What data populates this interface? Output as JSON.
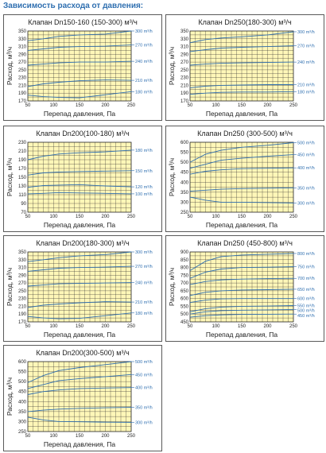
{
  "page": {
    "title": "Зависимость расхода от давления:"
  },
  "chart_data": [
    {
      "type": "line",
      "title": "Клапан Dn150-160 (150-300) м³/ч",
      "xlabel": "Перепад давления, Па",
      "ylabel": "Расход, м³/ч",
      "xlim": [
        50,
        250
      ],
      "ylim": [
        170,
        350
      ],
      "xticks": [
        50,
        100,
        150,
        200,
        250
      ],
      "yticks": [
        170,
        190,
        210,
        230,
        250,
        270,
        290,
        310,
        330,
        350
      ],
      "grid": true,
      "series": [
        {
          "name": "300 m³/h",
          "x": [
            50,
            80,
            110,
            150,
            200,
            250
          ],
          "y": [
            325,
            330,
            336,
            340,
            342,
            350
          ]
        },
        {
          "name": "270 m³/h",
          "x": [
            50,
            80,
            110,
            150,
            200,
            250
          ],
          "y": [
            300,
            304,
            308,
            310,
            311,
            314
          ]
        },
        {
          "name": "240 m³/h",
          "x": [
            50,
            80,
            110,
            150,
            200,
            250
          ],
          "y": [
            262,
            265,
            268,
            270,
            270,
            272
          ]
        },
        {
          "name": "210 m³/h",
          "x": [
            50,
            80,
            110,
            150,
            200,
            250
          ],
          "y": [
            207,
            214,
            218,
            222,
            224,
            223
          ]
        },
        {
          "name": "180 m³/h",
          "x": [
            50,
            80,
            110,
            150,
            200,
            250
          ],
          "y": [
            185,
            181,
            179,
            178,
            186,
            194
          ]
        }
      ]
    },
    {
      "type": "line",
      "title": "Клапан Dn250(180-300) м³/ч",
      "xlabel": "Перепад давления, Па",
      "ylabel": "Расход, м³/ч",
      "xlim": [
        50,
        250
      ],
      "ylim": [
        170,
        350
      ],
      "xticks": [
        50,
        100,
        150,
        200,
        250
      ],
      "yticks": [
        170,
        190,
        210,
        230,
        250,
        270,
        290,
        310,
        330,
        350
      ],
      "grid": true,
      "series": [
        {
          "name": "300 m³/h",
          "x": [
            50,
            80,
            110,
            150,
            200,
            250
          ],
          "y": [
            320,
            328,
            332,
            335,
            340,
            348
          ]
        },
        {
          "name": "270 m³/h",
          "x": [
            50,
            80,
            110,
            150,
            200,
            250
          ],
          "y": [
            297,
            302,
            306,
            308,
            310,
            312
          ]
        },
        {
          "name": "240 m³/h",
          "x": [
            50,
            80,
            110,
            150,
            200,
            250
          ],
          "y": [
            262,
            265,
            267,
            268,
            269,
            270
          ]
        },
        {
          "name": "210 m³/h",
          "x": [
            50,
            80,
            110,
            150,
            200,
            250
          ],
          "y": [
            204,
            208,
            210,
            211,
            212,
            212
          ]
        },
        {
          "name": "180 m³/h",
          "x": [
            50,
            80,
            110,
            150,
            200,
            250
          ],
          "y": [
            187,
            190,
            192,
            193,
            193,
            194
          ]
        }
      ]
    },
    {
      "type": "line",
      "title": "Клапан Dn200(100-180) м³/ч",
      "xlabel": "Перепад давления, Па",
      "ylabel": "Расход, м³/ч",
      "xlim": [
        50,
        250
      ],
      "ylim": [
        70,
        230
      ],
      "xticks": [
        50,
        100,
        150,
        200,
        250
      ],
      "yticks": [
        70,
        90,
        110,
        130,
        150,
        170,
        190,
        210,
        230
      ],
      "grid": true,
      "series": [
        {
          "name": "180 m³/h",
          "x": [
            50,
            80,
            110,
            150,
            200,
            250
          ],
          "y": [
            190,
            198,
            203,
            206,
            208,
            212
          ]
        },
        {
          "name": "150 m³/h",
          "x": [
            50,
            80,
            110,
            150,
            200,
            250
          ],
          "y": [
            155,
            160,
            162,
            163,
            164,
            165
          ]
        },
        {
          "name": "120 m³/h",
          "x": [
            50,
            80,
            110,
            150,
            200,
            250
          ],
          "y": [
            127,
            131,
            132,
            133,
            130,
            128
          ]
        },
        {
          "name": "100 m³/h",
          "x": [
            50,
            80,
            110,
            150,
            200,
            250
          ],
          "y": [
            112,
            113,
            115,
            114,
            113,
            112
          ]
        }
      ]
    },
    {
      "type": "line",
      "title": "Клапан Dn250 (300-500) м³/ч",
      "xlabel": "Перепад давления, Па",
      "ylabel": "Расход, м³/ч",
      "xlim": [
        50,
        250
      ],
      "ylim": [
        250,
        600
      ],
      "xticks": [
        50,
        100,
        150,
        200,
        250
      ],
      "yticks": [
        250,
        300,
        350,
        400,
        450,
        500,
        550,
        600
      ],
      "grid": true,
      "series": [
        {
          "name": "500 m³/h",
          "x": [
            50,
            80,
            110,
            150,
            200,
            250
          ],
          "y": [
            500,
            540,
            560,
            575,
            585,
            598
          ]
        },
        {
          "name": "450 m³/h",
          "x": [
            50,
            80,
            110,
            150,
            200,
            250
          ],
          "y": [
            470,
            490,
            510,
            520,
            530,
            538
          ]
        },
        {
          "name": "400 m³/h",
          "x": [
            50,
            80,
            110,
            150,
            200,
            250
          ],
          "y": [
            440,
            455,
            462,
            468,
            470,
            472
          ]
        },
        {
          "name": "350 m³/h",
          "x": [
            50,
            80,
            110,
            150,
            200,
            250
          ],
          "y": [
            355,
            360,
            365,
            368,
            370,
            372
          ]
        },
        {
          "name": "300 m³/h",
          "x": [
            50,
            80,
            110,
            150,
            200,
            250
          ],
          "y": [
            325,
            310,
            300,
            300,
            298,
            296
          ]
        }
      ]
    },
    {
      "type": "line",
      "title": "Клапан Dn200(180-300) м³/ч",
      "xlabel": "Перепад давления, Па",
      "ylabel": "Расход, м³/ч",
      "xlim": [
        50,
        250
      ],
      "ylim": [
        170,
        350
      ],
      "xticks": [
        50,
        100,
        150,
        200,
        250
      ],
      "yticks": [
        170,
        190,
        210,
        230,
        250,
        270,
        290,
        310,
        330,
        350
      ],
      "grid": true,
      "series": [
        {
          "name": "300 m³/h",
          "x": [
            50,
            80,
            110,
            150,
            200,
            250
          ],
          "y": [
            325,
            330,
            335,
            340,
            343,
            350
          ]
        },
        {
          "name": "270 m³/h",
          "x": [
            50,
            80,
            110,
            150,
            200,
            250
          ],
          "y": [
            300,
            304,
            308,
            310,
            311,
            313
          ]
        },
        {
          "name": "240 m³/h",
          "x": [
            50,
            80,
            110,
            150,
            200,
            250
          ],
          "y": [
            262,
            265,
            268,
            269,
            270,
            271
          ]
        },
        {
          "name": "210 m³/h",
          "x": [
            50,
            80,
            110,
            150,
            200,
            250
          ],
          "y": [
            207,
            213,
            216,
            219,
            222,
            221
          ]
        },
        {
          "name": "180 m³/h",
          "x": [
            50,
            80,
            110,
            150,
            200,
            250
          ],
          "y": [
            184,
            180,
            178,
            179,
            186,
            193
          ]
        }
      ]
    },
    {
      "type": "line",
      "title": "Клапан Dn250 (450-800) м³/ч",
      "xlabel": "Перепад давления, Па",
      "ylabel": "Расход, м³/ч",
      "xlim": [
        50,
        250
      ],
      "ylim": [
        450,
        900
      ],
      "xticks": [
        50,
        100,
        150,
        200,
        250
      ],
      "yticks": [
        450,
        500,
        550,
        600,
        650,
        700,
        750,
        800,
        850,
        900
      ],
      "grid": true,
      "series": [
        {
          "name": "800 m³/h",
          "x": [
            50,
            80,
            110,
            150,
            200,
            250
          ],
          "y": [
            780,
            840,
            870,
            880,
            885,
            890
          ]
        },
        {
          "name": "750 m³/h",
          "x": [
            50,
            80,
            110,
            150,
            200,
            250
          ],
          "y": [
            730,
            770,
            790,
            800,
            802,
            805
          ]
        },
        {
          "name": "700 m³/h",
          "x": [
            50,
            80,
            110,
            150,
            200,
            250
          ],
          "y": [
            690,
            710,
            720,
            725,
            728,
            730
          ]
        },
        {
          "name": "650 m³/h",
          "x": [
            50,
            80,
            110,
            150,
            200,
            250
          ],
          "y": [
            620,
            640,
            650,
            655,
            657,
            660
          ]
        },
        {
          "name": "600 m³/h",
          "x": [
            50,
            80,
            110,
            150,
            200,
            250
          ],
          "y": [
            575,
            590,
            598,
            600,
            600,
            600
          ]
        },
        {
          "name": "550 m³/h",
          "x": [
            50,
            80,
            110,
            150,
            200,
            250
          ],
          "y": [
            515,
            535,
            545,
            550,
            552,
            555
          ]
        },
        {
          "name": "500 m³/h",
          "x": [
            50,
            80,
            110,
            150,
            200,
            250
          ],
          "y": [
            500,
            515,
            522,
            525,
            527,
            530
          ]
        },
        {
          "name": "450 m³/h",
          "x": [
            50,
            80,
            110,
            150,
            200,
            250
          ],
          "y": [
            480,
            490,
            495,
            498,
            499,
            500
          ]
        }
      ]
    },
    {
      "type": "line",
      "title": "Клапан Dn200(300-500) м³/ч",
      "xlabel": "Перепад давления, Па",
      "ylabel": "Расход, м³/ч",
      "xlim": [
        50,
        250
      ],
      "ylim": [
        250,
        600
      ],
      "xticks": [
        50,
        100,
        150,
        200,
        250
      ],
      "yticks": [
        250,
        300,
        350,
        400,
        450,
        500,
        550,
        600
      ],
      "grid": true,
      "series": [
        {
          "name": "500 m³/h",
          "x": [
            50,
            80,
            110,
            150,
            200,
            250
          ],
          "y": [
            495,
            530,
            555,
            570,
            585,
            600
          ]
        },
        {
          "name": "450 m³/h",
          "x": [
            50,
            80,
            110,
            150,
            200,
            250
          ],
          "y": [
            465,
            485,
            505,
            515,
            525,
            535
          ]
        },
        {
          "name": "400 m³/h",
          "x": [
            50,
            80,
            110,
            150,
            200,
            250
          ],
          "y": [
            435,
            450,
            458,
            465,
            468,
            470
          ]
        },
        {
          "name": "350 m³/h",
          "x": [
            50,
            80,
            110,
            150,
            200,
            250
          ],
          "y": [
            350,
            357,
            362,
            366,
            369,
            371
          ]
        },
        {
          "name": "300 m³/h",
          "x": [
            50,
            80,
            110,
            150,
            200,
            250
          ],
          "y": [
            322,
            308,
            300,
            299,
            297,
            296
          ]
        }
      ]
    }
  ]
}
